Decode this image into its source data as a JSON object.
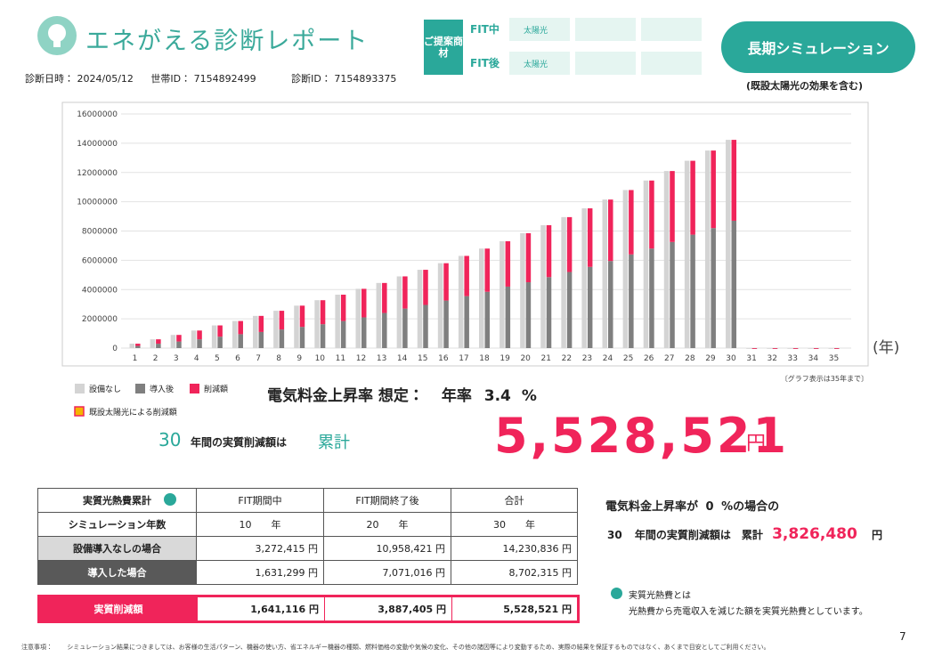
{
  "header": {
    "title": "エネがえる診断レポート",
    "date_label": "診断日時：",
    "date": "2024/05/12",
    "household_label": "世帯ID：",
    "household_id": "7154892499",
    "diagnosis_label": "診断ID：",
    "diagnosis_id": "7154893375"
  },
  "proposal": {
    "label": "ご提案商材",
    "rows": [
      {
        "label": "FIT中",
        "item": "太陽光"
      },
      {
        "label": "FIT後",
        "item": "太陽光"
      }
    ]
  },
  "button": {
    "label": "長期シミュレーション",
    "note": "(既設太陽光の効果を含む)"
  },
  "chart_data": {
    "type": "bar",
    "categories": [
      1,
      2,
      3,
      4,
      5,
      6,
      7,
      8,
      9,
      10,
      11,
      12,
      13,
      14,
      15,
      16,
      17,
      18,
      19,
      20,
      21,
      22,
      23,
      24,
      25,
      26,
      27,
      28,
      29,
      30,
      31,
      32,
      33,
      34,
      35
    ],
    "series": [
      {
        "name": "設備なし",
        "color": "#d4d4d4",
        "stack": "a",
        "values": [
          300000,
          600000,
          900000,
          1200000,
          1550000,
          1850000,
          2200000,
          2550000,
          2900000,
          3272415,
          3650000,
          4050000,
          4450000,
          4900000,
          5350000,
          5800000,
          6300000,
          6800000,
          7300000,
          7850000,
          8400000,
          8950000,
          9550000,
          10150000,
          10800000,
          11450000,
          12100000,
          12800000,
          13500000,
          14230836,
          0,
          0,
          0,
          0,
          0
        ]
      },
      {
        "name": "導入後",
        "color": "#7f7f7f",
        "stack": "b",
        "values": [
          150000,
          300000,
          450000,
          600000,
          780000,
          950000,
          1100000,
          1270000,
          1450000,
          1631299,
          1850000,
          2100000,
          2400000,
          2700000,
          2950000,
          3250000,
          3550000,
          3850000,
          4200000,
          4500000,
          4850000,
          5200000,
          5550000,
          5950000,
          6400000,
          6800000,
          7250000,
          7750000,
          8200000,
          8702315,
          0,
          0,
          0,
          0,
          0
        ]
      },
      {
        "name": "削減額",
        "color": "#f0245a",
        "stack": "b",
        "values": [
          150000,
          300000,
          450000,
          600000,
          770000,
          900000,
          1100000,
          1280000,
          1450000,
          1641116,
          1800000,
          1950000,
          2050000,
          2200000,
          2400000,
          2550000,
          2750000,
          2950000,
          3100000,
          3350000,
          3550000,
          3750000,
          4000000,
          4200000,
          4400000,
          4650000,
          4850000,
          5050000,
          5300000,
          5528521,
          0,
          0,
          0,
          0,
          0
        ]
      }
    ],
    "extra_legend": {
      "name": "既設太陽光による削減額",
      "color": "#f5b400",
      "border": "#f0245a"
    },
    "x_label": "(年)",
    "note": "〔グラフ表示は35年まで〕",
    "ylim": [
      0,
      16000000
    ],
    "yticks": [
      0,
      2000000,
      4000000,
      6000000,
      8000000,
      10000000,
      12000000,
      14000000,
      16000000
    ],
    "grid": true
  },
  "summary": {
    "rate_label": "電気料金上昇率 想定：",
    "rate_prefix": "年率",
    "rate": 3.4,
    "rate_unit": "%",
    "years": 30,
    "years_text": "年間の実質削減額は",
    "cumulative": "累計",
    "amount": "5,528,521",
    "yen": "円"
  },
  "table": {
    "header": [
      "実質光熱費累計",
      "FIT期間中",
      "FIT期間終了後",
      "合計"
    ],
    "rows": [
      [
        "シミュレーション年数",
        "10　　年",
        "20　　年",
        "30　　年"
      ],
      [
        "設備導入なしの場合",
        "3,272,415 円",
        "10,958,421 円",
        "14,230,836 円"
      ],
      [
        "導入した場合",
        "1,631,299 円",
        "7,071,016 円",
        "8,702,315 円"
      ]
    ],
    "total": [
      "実質削減額",
      "1,641,116 円",
      "3,887,405 円",
      "5,528,521 円"
    ]
  },
  "zero_case": {
    "prefix": "電気料金上昇率が",
    "rate": 0,
    "suffix": "%の場合の",
    "years": 30,
    "text": "年間の実質削減額は　累計",
    "amount": "3,826,480",
    "yen": "円"
  },
  "note": {
    "title": "実質光熱費とは",
    "body": "光熱費から売電収入を減じた額を実質光熱費としています。"
  },
  "footer": {
    "label": "注意事項：",
    "text": "シミュレーション結果につきましては、お客様の生活パターン、機器の使い方、省エネルギー機器の種類、燃料価格の変動や気候の変化、その他の諸因等により変動するため、実際の結果を保証するものではなく、あくまで目安としてご利用ください。",
    "page": 7
  }
}
